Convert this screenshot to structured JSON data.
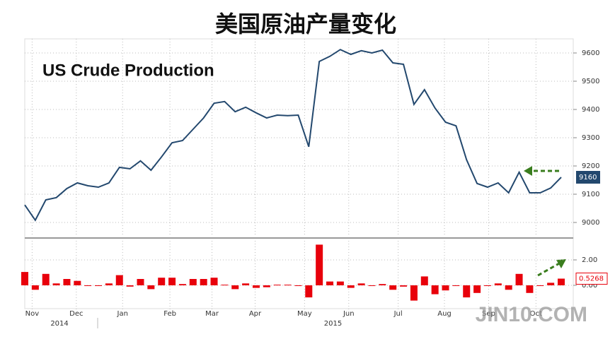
{
  "chart_data": [
    {
      "type": "line",
      "title": "美国原油产量变化",
      "annotation": "US Crude Production",
      "color": "#23486e",
      "x": [
        0,
        1,
        2,
        3,
        4,
        5,
        6,
        7,
        8,
        9,
        10,
        11,
        12,
        13,
        14,
        15,
        16,
        17,
        18,
        19,
        20,
        21,
        22,
        23,
        24,
        25,
        26,
        27,
        28,
        29,
        30,
        31,
        32,
        33,
        34,
        35,
        36,
        37,
        38,
        39,
        40,
        41,
        42,
        43,
        44,
        45,
        46,
        47,
        48,
        49,
        50,
        51
      ],
      "values": [
        9062,
        9008,
        9080,
        9088,
        9120,
        9140,
        9130,
        9125,
        9140,
        9195,
        9190,
        9218,
        9185,
        9232,
        9282,
        9290,
        9330,
        9370,
        9422,
        9428,
        9392,
        9408,
        9388,
        9370,
        9380,
        9378,
        9380,
        9268,
        9570,
        9588,
        9612,
        9595,
        9608,
        9600,
        9610,
        9565,
        9560,
        9418,
        9470,
        9405,
        9355,
        9342,
        9222,
        9138,
        9125,
        9140,
        9105,
        9178,
        9105,
        9105,
        9122,
        9160
      ],
      "xlim": [
        0,
        51
      ],
      "ylim": [
        8950,
        9650
      ],
      "yticks": [
        9000,
        9100,
        9200,
        9300,
        9400,
        9500,
        9600
      ],
      "grid": true
    },
    {
      "type": "bar",
      "color": "#e8000b",
      "x": [
        0,
        1,
        2,
        3,
        4,
        5,
        6,
        7,
        8,
        9,
        10,
        11,
        12,
        13,
        14,
        15,
        16,
        17,
        18,
        19,
        20,
        21,
        22,
        23,
        24,
        25,
        26,
        27,
        28,
        29,
        30,
        31,
        32,
        33,
        34,
        35,
        36,
        37,
        38,
        39,
        40,
        41,
        42,
        43,
        44,
        45,
        46,
        47,
        48,
        49,
        50,
        51
      ],
      "values": [
        1.05,
        -0.35,
        0.9,
        0.15,
        0.5,
        0.35,
        -0.05,
        -0.05,
        0.15,
        0.8,
        -0.1,
        0.5,
        -0.3,
        0.6,
        0.6,
        0.1,
        0.5,
        0.5,
        0.6,
        0.05,
        -0.3,
        0.15,
        -0.2,
        -0.15,
        0.05,
        0.05,
        0,
        -0.95,
        3.2,
        0.3,
        0.3,
        -0.2,
        0.15,
        -0.05,
        0.1,
        -0.35,
        -0.1,
        -1.2,
        0.7,
        -0.7,
        -0.4,
        -0.05,
        -0.95,
        -0.6,
        -0.05,
        0.15,
        -0.35,
        0.9,
        -0.6,
        -0.05,
        0.2,
        0.5268
      ],
      "xlim": [
        0,
        51
      ],
      "ylim": [
        -2,
        3.5
      ],
      "yticks": [
        {
          "value": 0,
          "label": "0.00"
        },
        {
          "value": 2,
          "label": "2.00"
        }
      ],
      "xticks": [
        {
          "value": 0.7,
          "label": "Nov"
        },
        {
          "value": 4.9,
          "label": "Dec"
        },
        {
          "value": 9.3,
          "label": "Jan"
        },
        {
          "value": 13.8,
          "label": "Feb"
        },
        {
          "value": 17.8,
          "label": "Mar"
        },
        {
          "value": 21.9,
          "label": "Apr"
        },
        {
          "value": 26.6,
          "label": "May"
        },
        {
          "value": 30.8,
          "label": "Jun"
        },
        {
          "value": 35.5,
          "label": "Jul"
        },
        {
          "value": 39.9,
          "label": "Aug"
        },
        {
          "value": 44.1,
          "label": "Sep"
        },
        {
          "value": 48.6,
          "label": "Oct"
        }
      ],
      "year_labels": [
        {
          "value": 3.3,
          "label": "2014"
        },
        {
          "value": 29.3,
          "label": "2015"
        }
      ],
      "grid": true
    },
    {
      "type": "watermark",
      "text": "JIN10.COM"
    }
  ]
}
